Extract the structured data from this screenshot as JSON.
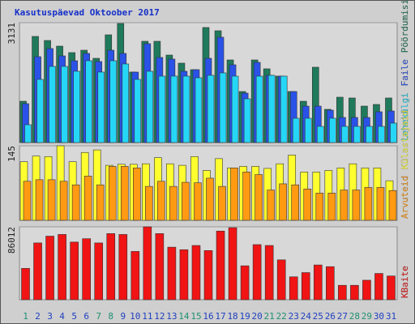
{
  "chart_data": [
    {
      "type": "bar",
      "title": "Kasutuspäevad Oktoober 2017",
      "ylim": [
        0,
        3131
      ],
      "yticks": [
        3131
      ],
      "series": [
        {
          "name": "Pöördumisi",
          "color": "#1f7a5c",
          "values": [
            1079,
            2772,
            2666,
            2518,
            2349,
            2412,
            2200,
            2814,
            3110,
            1841,
            2645,
            2645,
            2285,
            2074,
            1904,
            3005,
            2920,
            2158,
            1333,
            2158,
            1926,
            1735,
            1333,
            1079,
            1968,
            868,
            1185,
            1164,
            952,
            995,
            1164
          ]
        },
        {
          "name": "Faile",
          "color": "#2a52e8",
          "values": [
            1016,
            2243,
            2455,
            2264,
            2137,
            2328,
            2116,
            2412,
            2328,
            1841,
            2582,
            2222,
            2180,
            1862,
            1904,
            2201,
            2751,
            2031,
            1291,
            2095,
            1756,
            1735,
            1333,
            952,
            952,
            846,
            656,
            656,
            656,
            804,
            825
          ]
        },
        {
          "name": "Lehekülgi",
          "color": "#26d6f6",
          "values": [
            466,
            1650,
            1989,
            1989,
            1862,
            2137,
            1841,
            2137,
            2053,
            1650,
            1862,
            1735,
            1735,
            1735,
            1693,
            1756,
            1820,
            1735,
            1143,
            1735,
            1756,
            1735,
            635,
            635,
            423,
            635,
            423,
            423,
            423,
            423,
            508
          ]
        }
      ]
    },
    {
      "type": "bar",
      "ylim": [
        0,
        145
      ],
      "yticks": [
        145
      ],
      "series": [
        {
          "name": "Külastajaid",
          "color": "#ffff30",
          "values": [
            114,
            125,
            124,
            145,
            114,
            132,
            137,
            107,
            109,
            109,
            110,
            122,
            110,
            107,
            124,
            97,
            120,
            102,
            105,
            105,
            101,
            110,
            127,
            94,
            94,
            97,
            102,
            110,
            102,
            102,
            77
          ]
        },
        {
          "name": "Arvuteid",
          "color": "#ff9a12",
          "values": [
            76,
            79,
            79,
            76,
            69,
            86,
            69,
            105,
            105,
            102,
            66,
            76,
            66,
            74,
            73,
            82,
            66,
            102,
            94,
            89,
            59,
            71,
            69,
            61,
            53,
            53,
            59,
            59,
            64,
            64,
            58
          ]
        }
      ]
    },
    {
      "type": "bar",
      "ylim": [
        0,
        86012
      ],
      "yticks": [
        86012
      ],
      "categories": [
        "1",
        "2",
        "3",
        "4",
        "5",
        "6",
        "7",
        "8",
        "9",
        "10",
        "11",
        "12",
        "13",
        "14",
        "15",
        "16",
        "17",
        "18",
        "19",
        "20",
        "21",
        "22",
        "23",
        "24",
        "25",
        "26",
        "27",
        "28",
        "29",
        "30",
        "31"
      ],
      "category_colors": [
        "#209070",
        "#2040c0",
        "#2040c0",
        "#2040c0",
        "#2040c0",
        "#2040c0",
        "#209070",
        "#209070",
        "#2040c0",
        "#2040c0",
        "#2040c0",
        "#2040c0",
        "#2040c0",
        "#209070",
        "#209070",
        "#2040c0",
        "#2040c0",
        "#2040c0",
        "#2040c0",
        "#2040c0",
        "#209070",
        "#209070",
        "#2040c0",
        "#2040c0",
        "#2040c0",
        "#2040c0",
        "#2040c0",
        "#209070",
        "#209070",
        "#2040c0",
        "#2040c0"
      ],
      "series": [
        {
          "name": "KBaite",
          "color": "#f01414",
          "values": [
            37000,
            67000,
            75000,
            77000,
            68000,
            72000,
            67000,
            78000,
            77000,
            57000,
            86012,
            78000,
            62000,
            59000,
            64000,
            58000,
            81000,
            85000,
            40000,
            65000,
            64000,
            47000,
            27000,
            32000,
            41000,
            39000,
            17000,
            17000,
            23000,
            31000,
            28000
          ]
        }
      ]
    }
  ]
}
